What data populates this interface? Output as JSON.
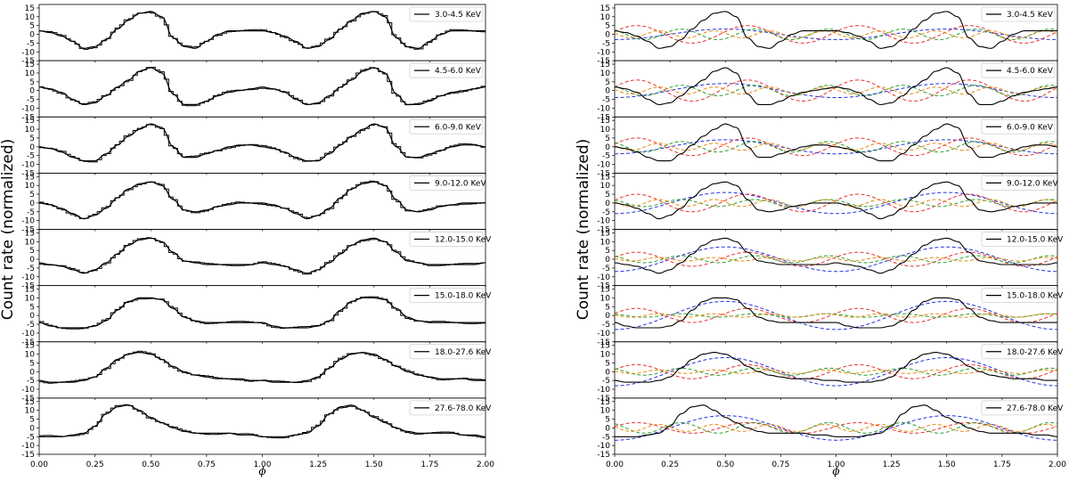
{
  "chart_data": [
    {
      "type": "line",
      "ylabel": "Count rate (normalized)",
      "xlabel": "ϕ",
      "xlim": [
        0,
        2
      ],
      "ylim": [
        -15,
        17
      ],
      "x_ticks": [
        "0.00",
        "0.25",
        "0.50",
        "0.75",
        "1.00",
        "1.25",
        "1.50",
        "1.75",
        "2.00"
      ],
      "y_ticks": [
        "15",
        "10",
        "5",
        "0",
        "-5",
        "-10",
        "-15"
      ],
      "legend_position": "top-right",
      "panels": [
        {
          "label": "3.0-4.5 KeV",
          "x": [
            0,
            0.05,
            0.1,
            0.15,
            0.2,
            0.25,
            0.3,
            0.35,
            0.4,
            0.45,
            0.5,
            0.55,
            0.6,
            0.65,
            0.7,
            0.75,
            0.8,
            0.85,
            0.9,
            0.95,
            1.0
          ],
          "y": [
            2,
            1,
            -1,
            -4,
            -8,
            -7,
            -3,
            3,
            8,
            12,
            13,
            10,
            -2,
            -7,
            -8,
            -4,
            0,
            2,
            2,
            2,
            2
          ]
        },
        {
          "label": "4.5-6.0 KeV",
          "x": [
            0,
            0.05,
            0.1,
            0.15,
            0.2,
            0.25,
            0.3,
            0.35,
            0.4,
            0.45,
            0.5,
            0.55,
            0.6,
            0.65,
            0.7,
            0.75,
            0.8,
            0.85,
            0.9,
            0.95,
            1.0
          ],
          "y": [
            2,
            1,
            -1,
            -5,
            -8,
            -7,
            -3,
            2,
            6,
            11,
            13,
            10,
            -2,
            -8,
            -8,
            -6,
            -3,
            -1,
            0,
            1,
            2
          ]
        },
        {
          "label": "6.0-9.0 KeV",
          "x": [
            0,
            0.05,
            0.1,
            0.15,
            0.2,
            0.25,
            0.3,
            0.35,
            0.4,
            0.45,
            0.5,
            0.55,
            0.6,
            0.65,
            0.7,
            0.75,
            0.8,
            0.85,
            0.9,
            0.95,
            1.0
          ],
          "y": [
            0,
            -1,
            -3,
            -6,
            -8,
            -8,
            -4,
            1,
            6,
            10,
            13,
            11,
            0,
            -6,
            -6,
            -4,
            -2,
            0,
            1,
            1,
            0
          ]
        },
        {
          "label": "9.0-12.0 KeV",
          "x": [
            0,
            0.05,
            0.1,
            0.15,
            0.2,
            0.25,
            0.3,
            0.35,
            0.4,
            0.45,
            0.5,
            0.55,
            0.6,
            0.65,
            0.7,
            0.75,
            0.8,
            0.85,
            0.9,
            0.95,
            1.0
          ],
          "y": [
            0,
            -1,
            -3,
            -6,
            -9,
            -7,
            -3,
            3,
            8,
            11,
            12,
            10,
            2,
            -4,
            -5,
            -4,
            -2,
            -1,
            0,
            0,
            0
          ]
        },
        {
          "label": "12.0-15.0 KeV",
          "x": [
            0,
            0.05,
            0.1,
            0.15,
            0.2,
            0.25,
            0.3,
            0.35,
            0.4,
            0.45,
            0.5,
            0.55,
            0.6,
            0.65,
            0.7,
            0.75,
            0.8,
            0.85,
            0.9,
            0.95,
            1.0
          ],
          "y": [
            -2,
            -3,
            -4,
            -6,
            -8,
            -6,
            -2,
            3,
            8,
            11,
            12,
            10,
            4,
            -1,
            -2,
            -3,
            -3,
            -3,
            -3,
            -3,
            -2
          ]
        },
        {
          "label": "15.0-18.0 KeV",
          "x": [
            0,
            0.05,
            0.1,
            0.15,
            0.2,
            0.25,
            0.3,
            0.35,
            0.4,
            0.45,
            0.5,
            0.55,
            0.6,
            0.65,
            0.7,
            0.75,
            0.8,
            0.85,
            0.9,
            0.95,
            1.0
          ],
          "y": [
            -4,
            -6,
            -7,
            -7,
            -7,
            -6,
            -3,
            3,
            8,
            10,
            10,
            9,
            4,
            -1,
            -3,
            -4,
            -4,
            -4,
            -4,
            -4,
            -4
          ]
        },
        {
          "label": "18.0-27.6 KeV",
          "x": [
            0,
            0.05,
            0.1,
            0.15,
            0.2,
            0.25,
            0.3,
            0.35,
            0.4,
            0.45,
            0.5,
            0.55,
            0.6,
            0.65,
            0.7,
            0.75,
            0.8,
            0.85,
            0.9,
            0.95,
            1.0
          ],
          "y": [
            -5,
            -6,
            -6,
            -6,
            -5,
            -3,
            2,
            7,
            10,
            11,
            10,
            7,
            3,
            0,
            -2,
            -3,
            -4,
            -4,
            -4,
            -5,
            -5
          ]
        },
        {
          "label": "27.6-78.0 KeV",
          "x": [
            0,
            0.05,
            0.1,
            0.15,
            0.2,
            0.25,
            0.3,
            0.35,
            0.4,
            0.45,
            0.5,
            0.55,
            0.6,
            0.65,
            0.7,
            0.75,
            0.8,
            0.85,
            0.9,
            0.95,
            1.0
          ],
          "y": [
            -5,
            -5,
            -5,
            -4,
            -3,
            1,
            8,
            12,
            13,
            10,
            6,
            3,
            0,
            -2,
            -3,
            -3,
            -3,
            -3,
            -4,
            -4,
            -5
          ]
        }
      ]
    },
    {
      "type": "line",
      "ylabel": "Count rate (normalized)",
      "xlabel": "ϕ",
      "xlim": [
        0,
        2
      ],
      "ylim": [
        -15,
        17
      ],
      "x_ticks": [
        "0.00",
        "0.25",
        "0.50",
        "0.75",
        "1.00",
        "1.25",
        "1.50",
        "1.75",
        "2.00"
      ],
      "y_ticks": [
        "15",
        "10",
        "5",
        "0",
        "-5",
        "-10",
        "-15"
      ],
      "legend_position": "top-right",
      "series_colors": {
        "black": "#000000",
        "red": "#e8322e",
        "blue": "#2530e0",
        "green": "#2ca02c",
        "orange": "#e88a12"
      },
      "harmonic_amplitudes": [
        {
          "h1": 3,
          "h2": 5,
          "h3": 3,
          "h4": 2
        },
        {
          "h1": 4,
          "h2": 6,
          "h3": 3,
          "h4": 2
        },
        {
          "h1": 4,
          "h2": 5,
          "h3": 3,
          "h4": 2
        },
        {
          "h1": 6,
          "h2": 5,
          "h3": 2,
          "h4": 2
        },
        {
          "h1": 7,
          "h2": 4,
          "h3": 2,
          "h4": 1
        },
        {
          "h1": 8,
          "h2": 4,
          "h3": 1,
          "h4": 1
        },
        {
          "h1": 8,
          "h2": 4,
          "h3": 2,
          "h4": 1
        },
        {
          "h1": 7,
          "h2": 3,
          "h3": 3,
          "h4": 2
        }
      ]
    }
  ]
}
